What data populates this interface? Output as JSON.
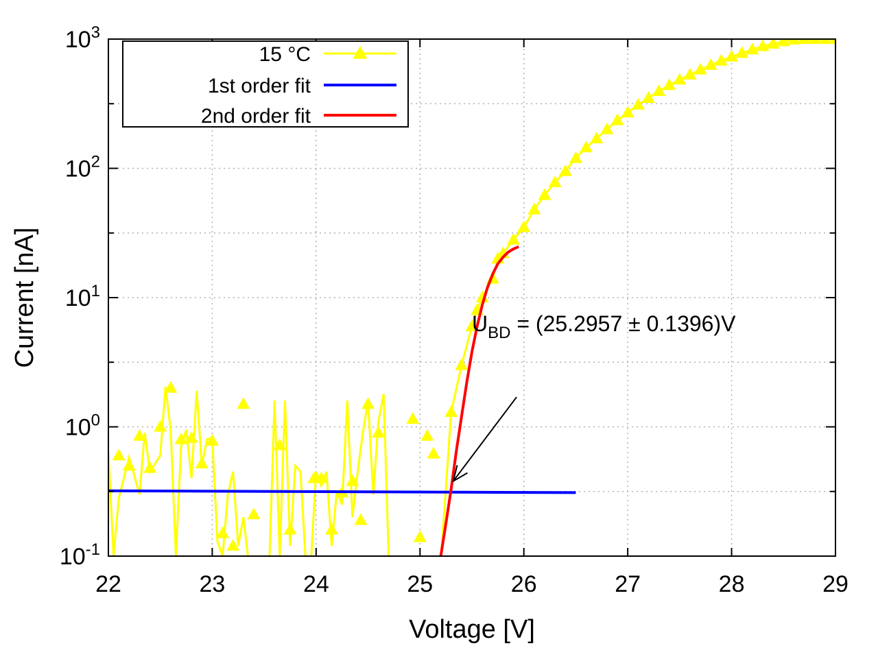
{
  "chart_data": {
    "type": "scatter",
    "title": "",
    "xlabel": "Voltage [V]",
    "ylabel": "Current [nA]",
    "xlim": [
      22,
      29
    ],
    "ylim": [
      0.1,
      1000
    ],
    "yscale": "log",
    "grid": true,
    "legend_position": "top-left",
    "x_ticks": [
      "22",
      "23",
      "24",
      "25",
      "26",
      "27",
      "28",
      "29"
    ],
    "y_ticks": [
      {
        "value": 0.1,
        "base": "10",
        "exp": "-1"
      },
      {
        "value": 1,
        "base": "10",
        "exp": "0"
      },
      {
        "value": 10,
        "base": "10",
        "exp": "1"
      },
      {
        "value": 100,
        "base": "10",
        "exp": "2"
      },
      {
        "value": 1000,
        "base": "10",
        "exp": "3"
      }
    ],
    "series": [
      {
        "name": "15 °C",
        "color": "#ffff00",
        "marker": "triangle",
        "line_x": [
          22.0,
          22.05,
          22.1,
          22.2,
          22.3,
          22.35,
          22.4,
          22.5,
          22.55,
          22.6,
          22.65,
          22.7,
          22.75,
          22.8,
          22.85,
          22.9,
          22.95,
          23.0,
          23.05,
          23.1,
          23.15,
          23.2,
          23.25,
          23.3,
          23.35,
          23.4,
          23.45,
          23.5,
          23.55,
          23.6,
          23.65,
          23.7,
          23.75,
          23.8,
          23.85,
          23.9,
          23.95,
          24.0,
          24.05,
          24.1,
          24.15,
          24.2,
          24.25,
          24.3,
          24.35,
          24.4,
          24.45,
          24.5,
          24.55,
          24.6,
          24.65,
          24.7,
          24.75,
          24.8,
          24.85,
          24.9,
          24.95,
          25.0,
          25.05,
          25.1,
          25.15,
          25.2
        ],
        "line_y": [
          0.65,
          0.1,
          0.28,
          0.58,
          0.3,
          0.9,
          0.45,
          0.6,
          2.05,
          0.95,
          0.1,
          0.7,
          0.95,
          0.4,
          1.9,
          0.5,
          0.8,
          0.82,
          0.13,
          0.1,
          0.3,
          0.45,
          0.12,
          0.2,
          0.09,
          0.09,
          0.09,
          0.09,
          0.09,
          1.6,
          0.1,
          1.6,
          0.12,
          0.5,
          0.45,
          0.09,
          0.09,
          0.45,
          0.35,
          0.45,
          0.12,
          0.32,
          0.25,
          1.6,
          0.2,
          0.45,
          0.9,
          1.6,
          0.3,
          1.1,
          1.8,
          0.09,
          0.09,
          0.09,
          0.09,
          0.09,
          0.09,
          0.09,
          0.09,
          0.09,
          0.09,
          0.09
        ],
        "marker_x": [
          22.1,
          22.2,
          22.3,
          22.4,
          22.5,
          22.6,
          22.7,
          22.8,
          22.9,
          23.0,
          23.1,
          23.2,
          23.3,
          23.4,
          23.65,
          23.75,
          23.98,
          24.05,
          24.15,
          24.25,
          24.35,
          24.43,
          24.5,
          24.6,
          24.93,
          25.0,
          25.07,
          25.13,
          25.2
        ],
        "marker_y": [
          0.6,
          0.5,
          0.85,
          0.48,
          1.0,
          2.0,
          0.8,
          0.82,
          0.52,
          0.78,
          0.15,
          0.12,
          1.5,
          0.21,
          0.72,
          0.16,
          0.4,
          0.4,
          0.16,
          0.31,
          0.38,
          0.19,
          1.5,
          0.9,
          1.15,
          0.14,
          0.85,
          0.62,
          0.09
        ],
        "rise_x": [
          25.3,
          25.4,
          25.5,
          25.55,
          25.6,
          25.7,
          25.75,
          25.8,
          25.9,
          26.0,
          26.1,
          26.2,
          26.3,
          26.4,
          26.5,
          26.6,
          26.7,
          26.8,
          26.9,
          27.0,
          27.1,
          27.2,
          27.3,
          27.4,
          27.5,
          27.6,
          27.7,
          27.8,
          27.9,
          28.0,
          28.1,
          28.2,
          28.3,
          28.4,
          28.5,
          28.6,
          28.7,
          28.8,
          28.9,
          29.0
        ],
        "rise_y": [
          1.3,
          3.0,
          6.0,
          8.0,
          10.0,
          14.0,
          20.0,
          22.0,
          28.0,
          35.0,
          48.0,
          62.0,
          78.0,
          95.0,
          120.0,
          145.0,
          170.0,
          200.0,
          235.0,
          270.0,
          310.0,
          350.0,
          395.0,
          440.0,
          485.0,
          530.0,
          580.0,
          630.0,
          680.0,
          730.0,
          780.0,
          830.0,
          880.0,
          920.0,
          960.0,
          990.0,
          1010.0,
          1020.0,
          1010.0,
          1000.0
        ]
      },
      {
        "name": "1st order fit",
        "color": "#0000ff",
        "x": [
          22.0,
          26.5
        ],
        "y": [
          0.32,
          0.31
        ]
      },
      {
        "name": "2nd order fit",
        "color": "#ff0000",
        "x": [
          25.2,
          25.25,
          25.3,
          25.35,
          25.4,
          25.45,
          25.5,
          25.55,
          25.6,
          25.65,
          25.7,
          25.75,
          25.8,
          25.85,
          25.9,
          25.95
        ],
        "y": [
          0.1,
          0.18,
          0.33,
          0.65,
          1.2,
          2.2,
          3.8,
          6.0,
          8.8,
          12.0,
          15.2,
          18.3,
          20.6,
          22.5,
          23.8,
          24.8
        ]
      }
    ],
    "annotation": {
      "prefix": "U",
      "sub": "BD",
      "text": " = (25.2957 ± 0.1396)V",
      "text_x": 25.5,
      "text_y": 5.5,
      "arrow_from_x": 25.93,
      "arrow_from_y": 1.7,
      "arrow_to_x": 25.32,
      "arrow_to_y": 0.38
    }
  }
}
